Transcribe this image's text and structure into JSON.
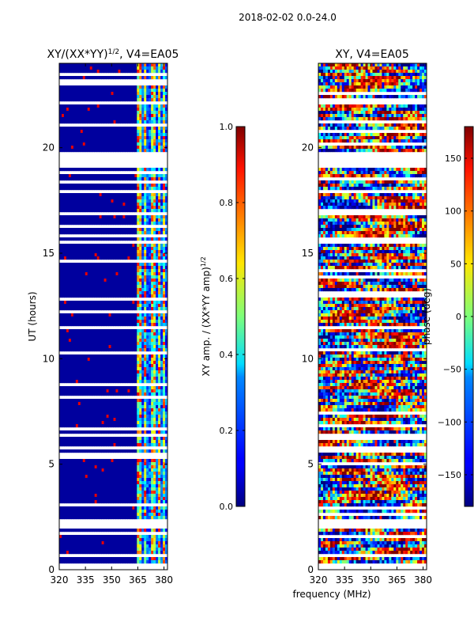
{
  "suptitle": "2018-02-02 0.0-24.0",
  "chart_data": [
    {
      "type": "heatmap",
      "title_main": "XY/(XX*YY)",
      "title_exp": "1/2",
      "title_suffix": ", V4=EA05",
      "xlabel": "",
      "ylabel": "UT (hours)",
      "xlim": [
        320,
        382
      ],
      "ylim": [
        0,
        24
      ],
      "xticks": [
        "320",
        "335",
        "350",
        "365",
        "380"
      ],
      "xtick_values": [
        320,
        335,
        350,
        365,
        380
      ],
      "yticks": [
        "0",
        "5",
        "10",
        "15",
        "20"
      ],
      "ytick_values": [
        0,
        5,
        10,
        15,
        20
      ],
      "colorbar": {
        "label_main": "XY amp. / (XX*YY amp)",
        "label_exp": "1/2",
        "range": [
          0.0,
          1.0
        ],
        "ticks": [
          "0.0",
          "0.2",
          "0.4",
          "0.6",
          "0.8",
          "1.0"
        ],
        "tick_values": [
          0.0,
          0.2,
          0.4,
          0.6,
          0.8,
          1.0
        ]
      },
      "features": {
        "low_region_x": [
          320,
          364
        ],
        "active_channels_x": [
          [
            364.5,
            366.5
          ],
          [
            368,
            370
          ],
          [
            372,
            375
          ],
          [
            376.5,
            378.5
          ],
          [
            379.5,
            381
          ]
        ],
        "gaps_hours": [
          [
            19.1,
            19.8
          ],
          [
            18.9,
            18.95
          ],
          [
            17.9,
            18.0
          ],
          [
            16.85,
            16.95
          ],
          [
            1.9,
            2.2
          ],
          [
            0.6,
            0.7
          ],
          [
            0.2,
            0.3
          ],
          [
            22.1,
            22.2
          ],
          [
            7.3,
            7.35
          ],
          [
            4.2,
            4.25
          ]
        ]
      }
    },
    {
      "type": "heatmap",
      "title": "XY, V4=EA05",
      "xlabel": "frequency (MHz)",
      "ylabel": "",
      "xlim": [
        320,
        382
      ],
      "ylim": [
        0,
        24
      ],
      "xticks": [
        "320",
        "335",
        "350",
        "365",
        "380"
      ],
      "xtick_values": [
        320,
        335,
        350,
        365,
        380
      ],
      "yticks": [
        "0",
        "5",
        "10",
        "15",
        "20"
      ],
      "ytick_values": [
        0,
        5,
        10,
        15,
        20
      ],
      "colorbar": {
        "label": "phase (deg)",
        "range": [
          -180,
          180
        ],
        "ticks": [
          "−150",
          "−100",
          "−50",
          "0",
          "50",
          "100",
          "150"
        ],
        "tick_values": [
          -150,
          -100,
          -50,
          0,
          50,
          100,
          150
        ]
      },
      "features": {
        "gaps_hours": [
          [
            19.1,
            19.8
          ],
          [
            18.9,
            18.95
          ],
          [
            17.9,
            18.0
          ],
          [
            16.85,
            16.95
          ],
          [
            1.9,
            2.2
          ],
          [
            0.6,
            0.7
          ],
          [
            0.2,
            0.3
          ],
          [
            22.1,
            22.2
          ],
          [
            7.3,
            7.35
          ],
          [
            4.2,
            4.25
          ]
        ]
      }
    }
  ]
}
